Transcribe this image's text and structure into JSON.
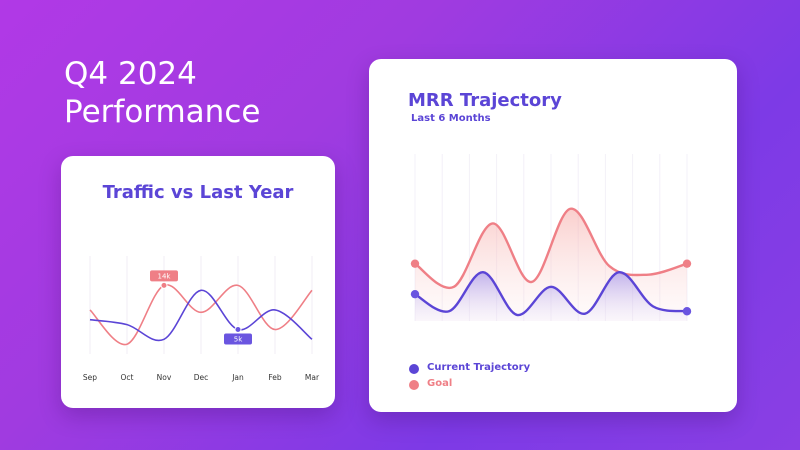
{
  "hero": {
    "line1": "Q4 2024",
    "line2": "Performance"
  },
  "colors": {
    "purple_line": "#5b45d6",
    "coral_line": "#ef7f86",
    "coral_marker": "#ef7f86",
    "purple_marker": "#6a55e0"
  },
  "traffic_card": {
    "title": "Traffic vs Last Year"
  },
  "mrr_card": {
    "title": "MRR Trajectory",
    "subtitle": "Last 6 Months",
    "legend": [
      {
        "label": "Current Trajectory",
        "color": "#5b45d6"
      },
      {
        "label": "Goal",
        "color": "#ef7f86"
      }
    ]
  },
  "chart_data": [
    {
      "type": "line",
      "title": "Traffic vs Last Year",
      "categories": [
        "Sep",
        "Oct",
        "Nov",
        "Dec",
        "Jan",
        "Feb",
        "Mar"
      ],
      "ylim": [
        0,
        20
      ],
      "grid": "vertical",
      "series": [
        {
          "color": "#ef7f86",
          "values": [
            9,
            2,
            14,
            8.5,
            14,
            5,
            13
          ]
        },
        {
          "color": "#5b45d6",
          "values": [
            7,
            6,
            3,
            13,
            5,
            9,
            3
          ]
        }
      ],
      "annotations": [
        {
          "text": "14k",
          "category": "Nov",
          "series": 0
        },
        {
          "text": "5k",
          "category": "Jan",
          "series": 1
        }
      ]
    },
    {
      "type": "area",
      "title": "MRR Trajectory",
      "subtitle": "Last 6 Months",
      "ylim": [
        0,
        100
      ],
      "grid": "vertical",
      "legend_position": "bottom-left",
      "series": [
        {
          "name": "Goal",
          "color": "#ef7f86",
          "values": [
            47,
            28,
            80,
            32,
            92,
            45,
            38,
            47
          ]
        },
        {
          "name": "Current Trajectory",
          "color": "#5b45d6",
          "values": [
            22,
            8,
            40,
            5,
            28,
            6,
            40,
            12,
            8
          ]
        }
      ]
    }
  ]
}
